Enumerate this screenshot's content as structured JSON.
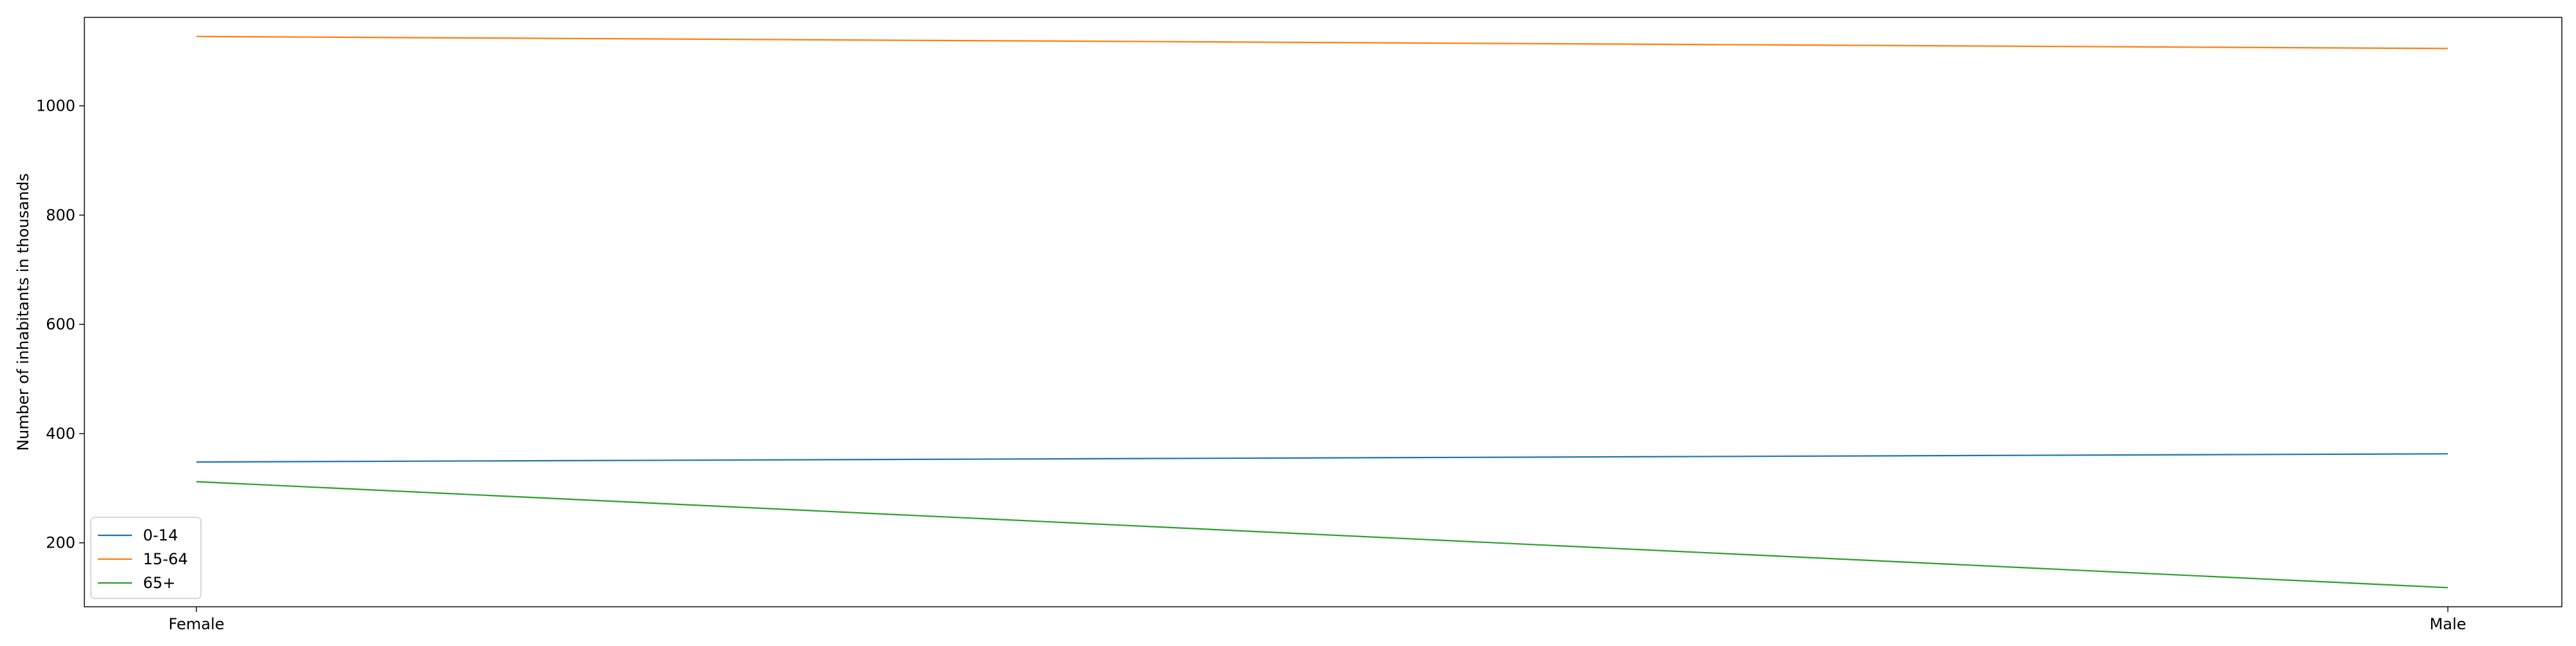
{
  "chart_data": {
    "type": "line",
    "title": "",
    "xlabel": "",
    "ylabel": "Number of inhabitants in thousands",
    "categories": [
      "Female",
      "Male"
    ],
    "ylim": [
      83,
      1162
    ],
    "yticks": [
      200,
      400,
      600,
      800,
      1000
    ],
    "series": [
      {
        "name": "0-14",
        "values": [
          348,
          363
        ],
        "color": "#1f77b4"
      },
      {
        "name": "15-64",
        "values": [
          1127,
          1105
        ],
        "color": "#ff7f0e"
      },
      {
        "name": "65+",
        "values": [
          312,
          118
        ],
        "color": "#2ca02c"
      }
    ],
    "grid": false,
    "legend": {
      "position": "lower-left"
    }
  }
}
